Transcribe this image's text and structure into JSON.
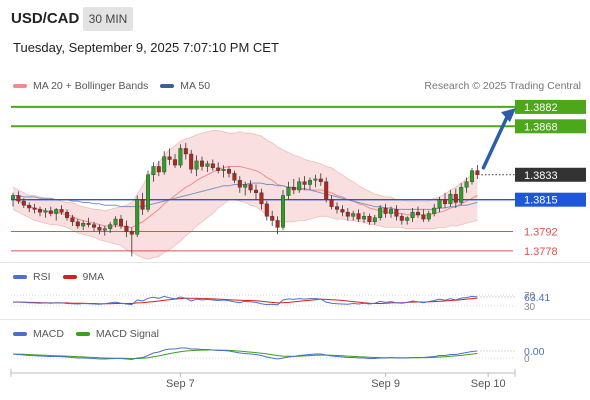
{
  "header": {
    "symbol": "USD/CAD",
    "interval": "30 MIN",
    "datetime": "Tuesday, September 9, 2025 7:07:10 PM CET"
  },
  "legend": {
    "items": [
      {
        "label": "MA 20 + Bollinger Bands",
        "color": "#f08c8c"
      },
      {
        "label": "MA 50",
        "color": "#3a5f9a"
      }
    ],
    "research": "Research © 2025 Trading Central"
  },
  "levels": [
    {
      "label": "1.3882",
      "value": 1.3882,
      "kind": "target",
      "color": "#4ca81a"
    },
    {
      "label": "1.3868",
      "value": 1.3868,
      "kind": "target",
      "color": "#4ca81a"
    },
    {
      "label": "1.3833",
      "value": 1.3833,
      "kind": "last",
      "color": "#333333"
    },
    {
      "label": "1.3815",
      "value": 1.3815,
      "kind": "pivot",
      "color": "#1d56d8"
    },
    {
      "label": "1.3792",
      "value": 1.3792,
      "kind": "support",
      "color": "#e05050"
    },
    {
      "label": "1.3778",
      "value": 1.3778,
      "kind": "support",
      "color": "#e05050"
    }
  ],
  "rsi": {
    "legend": [
      {
        "label": "RSI",
        "color": "#4d6fd0"
      },
      {
        "label": "9MA",
        "color": "#d42020"
      }
    ],
    "value_label": "63.41",
    "scale_labels": [
      "70",
      "30"
    ],
    "value": 63.41
  },
  "macd": {
    "legend": [
      {
        "label": "MACD",
        "color": "#4d6fd0"
      },
      {
        "label": "MACD Signal",
        "color": "#3aa01a"
      }
    ],
    "value_label": "0.00",
    "scale_label": "0"
  },
  "xaxis": {
    "ticks": [
      "Sep 7",
      "Sep 9",
      "Sep 10"
    ]
  },
  "chart_data": {
    "type": "candlestick",
    "symbol": "USD/CAD",
    "interval": "30 MIN",
    "ylim": [
      1.377,
      1.3887
    ],
    "candles": [
      [
        1.3815,
        1.382,
        1.381,
        1.3818
      ],
      [
        1.3818,
        1.3821,
        1.3812,
        1.3814
      ],
      [
        1.3814,
        1.3816,
        1.3809,
        1.3811
      ],
      [
        1.3811,
        1.3813,
        1.3806,
        1.3809
      ],
      [
        1.3809,
        1.3812,
        1.3805,
        1.3808
      ],
      [
        1.3808,
        1.381,
        1.3803,
        1.3806
      ],
      [
        1.3806,
        1.3809,
        1.3802,
        1.3807
      ],
      [
        1.3807,
        1.381,
        1.3803,
        1.3805
      ],
      [
        1.3805,
        1.3809,
        1.38,
        1.3808
      ],
      [
        1.3808,
        1.3811,
        1.3804,
        1.3806
      ],
      [
        1.3806,
        1.3808,
        1.38,
        1.3802
      ],
      [
        1.3802,
        1.3804,
        1.3796,
        1.3799
      ],
      [
        1.3799,
        1.3801,
        1.3794,
        1.3796
      ],
      [
        1.3796,
        1.38,
        1.3793,
        1.3798
      ],
      [
        1.3798,
        1.3802,
        1.3795,
        1.3797
      ],
      [
        1.3797,
        1.3799,
        1.3792,
        1.3795
      ],
      [
        1.3795,
        1.3797,
        1.379,
        1.3793
      ],
      [
        1.3793,
        1.3796,
        1.3789,
        1.3794
      ],
      [
        1.3794,
        1.3799,
        1.3791,
        1.3797
      ],
      [
        1.3797,
        1.3803,
        1.3795,
        1.3801
      ],
      [
        1.3801,
        1.3804,
        1.3794,
        1.3796
      ],
      [
        1.3796,
        1.38,
        1.3788,
        1.3792
      ],
      [
        1.3792,
        1.3795,
        1.3774,
        1.379
      ],
      [
        1.379,
        1.3818,
        1.3788,
        1.3815
      ],
      [
        1.3815,
        1.382,
        1.3804,
        1.3808
      ],
      [
        1.3808,
        1.3836,
        1.3806,
        1.3833
      ],
      [
        1.3833,
        1.3842,
        1.3828,
        1.3839
      ],
      [
        1.3839,
        1.3843,
        1.3832,
        1.3835
      ],
      [
        1.3835,
        1.385,
        1.3833,
        1.3846
      ],
      [
        1.3846,
        1.3852,
        1.384,
        1.3844
      ],
      [
        1.3844,
        1.3848,
        1.3838,
        1.384
      ],
      [
        1.384,
        1.3855,
        1.3838,
        1.3852
      ],
      [
        1.3852,
        1.3856,
        1.3844,
        1.3848
      ],
      [
        1.3848,
        1.3851,
        1.3834,
        1.3837
      ],
      [
        1.3837,
        1.3847,
        1.3832,
        1.3843
      ],
      [
        1.3843,
        1.3846,
        1.3836,
        1.3839
      ],
      [
        1.3839,
        1.3843,
        1.3835,
        1.3841
      ],
      [
        1.3841,
        1.3844,
        1.3836,
        1.3838
      ],
      [
        1.3838,
        1.3842,
        1.3834,
        1.3836
      ],
      [
        1.3836,
        1.384,
        1.3831,
        1.3837
      ],
      [
        1.3837,
        1.3839,
        1.3831,
        1.3834
      ],
      [
        1.3834,
        1.3836,
        1.3827,
        1.3829
      ],
      [
        1.3829,
        1.3832,
        1.382,
        1.3824
      ],
      [
        1.3824,
        1.3828,
        1.3818,
        1.3826
      ],
      [
        1.3826,
        1.3829,
        1.382,
        1.3822
      ],
      [
        1.3822,
        1.3826,
        1.3815,
        1.382
      ],
      [
        1.382,
        1.3823,
        1.3808,
        1.3812
      ],
      [
        1.3812,
        1.3814,
        1.38,
        1.3803
      ],
      [
        1.3803,
        1.3807,
        1.3796,
        1.38
      ],
      [
        1.38,
        1.3803,
        1.379,
        1.3795
      ],
      [
        1.3795,
        1.3822,
        1.3793,
        1.3818
      ],
      [
        1.3818,
        1.3828,
        1.3815,
        1.3824
      ],
      [
        1.3824,
        1.383,
        1.3819,
        1.3822
      ],
      [
        1.3822,
        1.3831,
        1.382,
        1.3828
      ],
      [
        1.3828,
        1.3832,
        1.3822,
        1.3826
      ],
      [
        1.3826,
        1.3831,
        1.3822,
        1.3829
      ],
      [
        1.3829,
        1.3833,
        1.3824,
        1.383
      ],
      [
        1.383,
        1.3834,
        1.3825,
        1.3828
      ],
      [
        1.3828,
        1.3831,
        1.3813,
        1.3815
      ],
      [
        1.3815,
        1.3818,
        1.3808,
        1.381
      ],
      [
        1.381,
        1.3813,
        1.3805,
        1.3808
      ],
      [
        1.3808,
        1.3811,
        1.3803,
        1.3806
      ],
      [
        1.3806,
        1.3809,
        1.38,
        1.3803
      ],
      [
        1.3803,
        1.3807,
        1.38,
        1.3805
      ],
      [
        1.3805,
        1.3808,
        1.3799,
        1.3801
      ],
      [
        1.3801,
        1.3806,
        1.3798,
        1.3803
      ],
      [
        1.3803,
        1.3805,
        1.3797,
        1.3799
      ],
      [
        1.3799,
        1.3804,
        1.3797,
        1.3802
      ],
      [
        1.3802,
        1.3811,
        1.38,
        1.3809
      ],
      [
        1.3809,
        1.3812,
        1.3802,
        1.3805
      ],
      [
        1.3805,
        1.381,
        1.3802,
        1.3808
      ],
      [
        1.3808,
        1.3811,
        1.38,
        1.3803
      ],
      [
        1.3803,
        1.3805,
        1.3797,
        1.38
      ],
      [
        1.38,
        1.3803,
        1.3797,
        1.3802
      ],
      [
        1.3802,
        1.3809,
        1.3799,
        1.3806
      ],
      [
        1.3806,
        1.381,
        1.3802,
        1.3804
      ],
      [
        1.3804,
        1.3808,
        1.3799,
        1.3801
      ],
      [
        1.3801,
        1.3807,
        1.3799,
        1.3805
      ],
      [
        1.3805,
        1.3812,
        1.3803,
        1.3809
      ],
      [
        1.3809,
        1.3817,
        1.3806,
        1.3815
      ],
      [
        1.3815,
        1.382,
        1.3809,
        1.3812
      ],
      [
        1.3812,
        1.3822,
        1.381,
        1.3819
      ],
      [
        1.3819,
        1.3823,
        1.3809,
        1.3813
      ],
      [
        1.3813,
        1.3827,
        1.3811,
        1.3824
      ],
      [
        1.3824,
        1.3831,
        1.382,
        1.3828
      ],
      [
        1.3828,
        1.3838,
        1.3826,
        1.3836
      ],
      [
        1.3836,
        1.384,
        1.383,
        1.3833
      ]
    ],
    "ma20": [
      1.3816,
      1.3814,
      1.3812,
      1.381,
      1.3809,
      1.3808,
      1.3807,
      1.3806,
      1.3806,
      1.3805,
      1.3804,
      1.3803,
      1.3801,
      1.38,
      1.3799,
      1.3798,
      1.3797,
      1.3796,
      1.3796,
      1.3796,
      1.3796,
      1.3795,
      1.3795,
      1.3797,
      1.3799,
      1.3802,
      1.3805,
      1.3808,
      1.3812,
      1.3815,
      1.3818,
      1.3821,
      1.3824,
      1.3826,
      1.3829,
      1.3831,
      1.3833,
      1.3835,
      1.3837,
      1.3838,
      1.3839,
      1.3839,
      1.3839,
      1.3838,
      1.3837,
      1.3836,
      1.3834,
      1.3831,
      1.3829,
      1.3826,
      1.3825,
      1.3824,
      1.3823,
      1.3823,
      1.3822,
      1.3822,
      1.3822,
      1.3822,
      1.3821,
      1.382,
      1.3818,
      1.3817,
      1.3815,
      1.3814,
      1.3812,
      1.3811,
      1.3809,
      1.3808,
      1.3807,
      1.3806,
      1.3806,
      1.3805,
      1.3805,
      1.3804,
      1.3804,
      1.3804,
      1.3804,
      1.3804,
      1.3805,
      1.3806,
      1.3807,
      1.3809,
      1.381,
      1.3812,
      1.3814,
      1.3816,
      1.3818
    ],
    "bb_width": [
      8,
      8,
      8,
      8,
      9,
      9,
      9,
      9,
      9,
      9,
      9,
      10,
      10,
      10,
      10,
      10,
      11,
      11,
      12,
      13,
      14,
      16,
      18,
      22,
      26,
      30,
      32,
      34,
      35,
      36,
      36,
      36,
      35,
      34,
      33,
      32,
      31,
      30,
      28,
      26,
      24,
      24,
      25,
      25,
      26,
      26,
      27,
      27,
      27,
      27,
      26,
      25,
      24,
      23,
      22,
      21,
      20,
      19,
      18,
      18,
      17,
      16,
      15,
      14,
      13,
      12,
      12,
      11,
      11,
      11,
      11,
      10,
      10,
      10,
      10,
      10,
      10,
      10,
      11,
      11,
      12,
      13,
      14,
      15,
      16,
      17,
      18
    ],
    "ma50": [
      1.3818,
      1.3818,
      1.3817,
      1.3817,
      1.3817,
      1.3816,
      1.3816,
      1.3816,
      1.3815,
      1.3815,
      1.3815,
      1.3814,
      1.3814,
      1.3813,
      1.3813,
      1.3812,
      1.3812,
      1.3811,
      1.3811,
      1.3811,
      1.381,
      1.381,
      1.381,
      1.381,
      1.381,
      1.3811,
      1.3812,
      1.3813,
      1.3814,
      1.3815,
      1.3816,
      1.3817,
      1.3818,
      1.3819,
      1.382,
      1.3821,
      1.3822,
      1.3823,
      1.3824,
      1.3825,
      1.3825,
      1.3826,
      1.3826,
      1.3826,
      1.3827,
      1.3827,
      1.3827,
      1.3826,
      1.3826,
      1.3825,
      1.3825,
      1.3824,
      1.3824,
      1.3823,
      1.3823,
      1.3822,
      1.3821,
      1.382,
      1.3819,
      1.3818,
      1.3817,
      1.3816,
      1.3815,
      1.3814,
      1.3813,
      1.3812,
      1.3811,
      1.381,
      1.381,
      1.3809,
      1.3809,
      1.3808,
      1.3808,
      1.3808,
      1.3808,
      1.3808,
      1.3808,
      1.3808,
      1.3808,
      1.3809,
      1.3809,
      1.381,
      1.381,
      1.3811,
      1.3811,
      1.3812,
      1.3813
    ],
    "rsi": [
      44,
      45,
      43,
      42,
      41,
      40,
      41,
      40,
      42,
      41,
      39,
      38,
      37,
      39,
      38,
      37,
      36,
      38,
      41,
      44,
      40,
      37,
      35,
      52,
      48,
      58,
      62,
      58,
      65,
      60,
      56,
      63,
      58,
      48,
      55,
      52,
      54,
      52,
      50,
      52,
      49,
      45,
      42,
      47,
      45,
      43,
      38,
      35,
      36,
      34,
      52,
      56,
      54,
      57,
      55,
      57,
      57,
      55,
      44,
      40,
      38,
      37,
      36,
      39,
      37,
      40,
      37,
      40,
      47,
      43,
      46,
      42,
      40,
      43,
      48,
      45,
      42,
      46,
      50,
      55,
      51,
      57,
      52,
      59,
      61,
      65,
      63.41
    ],
    "rsi_ma9": [
      44,
      44,
      44,
      43,
      43,
      42,
      42,
      41,
      41,
      41,
      41,
      40,
      40,
      40,
      39,
      39,
      38,
      38,
      38,
      39,
      39,
      39,
      39,
      41,
      42,
      44,
      46,
      48,
      51,
      53,
      55,
      57,
      58,
      58,
      58,
      57,
      57,
      56,
      55,
      54,
      53,
      52,
      51,
      50,
      50,
      49,
      47,
      45,
      43,
      41,
      42,
      43,
      45,
      47,
      49,
      51,
      53,
      55,
      54,
      53,
      52,
      50,
      48,
      46,
      44,
      42,
      40,
      39,
      39,
      40,
      41,
      42,
      42,
      43,
      44,
      45,
      44,
      45,
      46,
      47,
      48,
      50,
      51,
      53,
      55,
      57,
      59
    ],
    "macd": [
      0.0,
      -0.1,
      -0.2,
      -0.3,
      -0.35,
      -0.4,
      -0.45,
      -0.5,
      -0.5,
      -0.52,
      -0.6,
      -0.7,
      -0.8,
      -0.8,
      -0.85,
      -0.9,
      -1.0,
      -1.0,
      -0.95,
      -0.9,
      -0.9,
      -1.0,
      -1.1,
      -0.8,
      -0.7,
      -0.3,
      0.2,
      0.4,
      0.8,
      1.0,
      1.0,
      1.2,
      1.2,
      1.0,
      1.0,
      0.9,
      0.9,
      0.8,
      0.7,
      0.7,
      0.6,
      0.4,
      0.2,
      0.1,
      0.0,
      -0.1,
      -0.3,
      -0.6,
      -0.8,
      -1.0,
      -0.8,
      -0.6,
      -0.5,
      -0.3,
      -0.2,
      -0.1,
      0.0,
      0.0,
      -0.2,
      -0.4,
      -0.5,
      -0.6,
      -0.7,
      -0.7,
      -0.8,
      -0.8,
      -0.9,
      -0.9,
      -0.8,
      -0.8,
      -0.7,
      -0.8,
      -0.8,
      -0.8,
      -0.7,
      -0.7,
      -0.7,
      -0.6,
      -0.5,
      -0.3,
      -0.3,
      -0.1,
      -0.1,
      0.1,
      0.3,
      0.5,
      0.6
    ],
    "macd_signal": [
      0.0,
      -0.02,
      -0.06,
      -0.11,
      -0.16,
      -0.21,
      -0.26,
      -0.31,
      -0.35,
      -0.39,
      -0.43,
      -0.48,
      -0.54,
      -0.59,
      -0.64,
      -0.69,
      -0.75,
      -0.8,
      -0.83,
      -0.84,
      -0.85,
      -0.88,
      -0.92,
      -0.9,
      -0.86,
      -0.75,
      -0.56,
      -0.37,
      -0.14,
      0.09,
      0.27,
      0.46,
      0.6,
      0.68,
      0.75,
      0.78,
      0.8,
      0.8,
      0.78,
      0.76,
      0.73,
      0.66,
      0.57,
      0.48,
      0.38,
      0.28,
      0.16,
      0.01,
      -0.15,
      -0.32,
      -0.42,
      -0.46,
      -0.47,
      -0.44,
      -0.39,
      -0.33,
      -0.26,
      -0.21,
      -0.21,
      -0.25,
      -0.3,
      -0.36,
      -0.43,
      -0.48,
      -0.54,
      -0.59,
      -0.65,
      -0.7,
      -0.72,
      -0.74,
      -0.73,
      -0.74,
      -0.75,
      -0.76,
      -0.75,
      -0.74,
      -0.73,
      -0.71,
      -0.67,
      -0.6,
      -0.54,
      -0.45,
      -0.38,
      -0.28,
      -0.16,
      -0.03,
      0.1
    ],
    "x_tick_indices": [
      31,
      69,
      88
    ]
  }
}
